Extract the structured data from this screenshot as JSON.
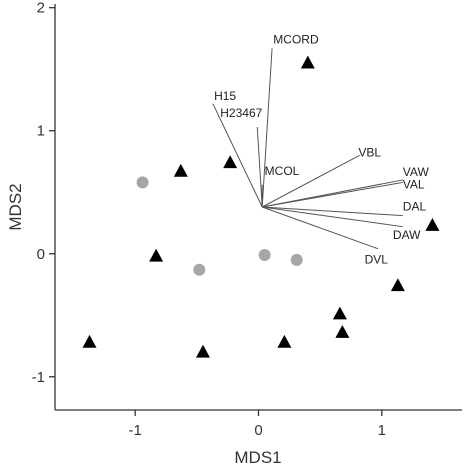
{
  "chart_data": {
    "type": "scatter",
    "title": "",
    "xlabel": "MDS1",
    "ylabel": "MDS2",
    "xlim": [
      -1.65,
      1.65
    ],
    "ylim": [
      -1.27,
      2.03
    ],
    "x_ticks": [
      -1,
      0,
      1
    ],
    "y_ticks": [
      -1,
      0,
      1,
      2
    ],
    "grid": false,
    "legend": "none",
    "series": [
      {
        "marker": "triangle",
        "color": "#000000",
        "points": [
          [
            -1.37,
            -0.72
          ],
          [
            -0.83,
            -0.02
          ],
          [
            -0.63,
            0.67
          ],
          [
            -0.45,
            -0.8
          ],
          [
            -0.23,
            0.74
          ],
          [
            0.21,
            -0.72
          ],
          [
            0.4,
            1.55
          ],
          [
            0.66,
            -0.49
          ],
          [
            0.68,
            -0.64
          ],
          [
            1.13,
            -0.26
          ],
          [
            1.41,
            0.23
          ]
        ]
      },
      {
        "marker": "circle",
        "color": "#a6a6a6",
        "points": [
          [
            -0.94,
            0.58
          ],
          [
            -0.48,
            -0.13
          ],
          [
            0.05,
            -0.01
          ],
          [
            0.31,
            -0.05
          ]
        ]
      }
    ],
    "vectors": {
      "origin": [
        0.03,
        0.38
      ],
      "color": "#555555",
      "items": [
        {
          "label": "MCORD",
          "end": [
            0.11,
            1.67
          ],
          "label_at": [
            0.12,
            1.71
          ]
        },
        {
          "label": "H15",
          "end": [
            -0.37,
            1.22
          ],
          "label_at": [
            -0.36,
            1.25
          ]
        },
        {
          "label": "H23467",
          "end": [
            -0.01,
            1.03
          ],
          "label_at": [
            -0.31,
            1.11
          ]
        },
        {
          "label": "MCOL",
          "end": [
            0.03,
            0.56
          ],
          "label_at": [
            0.05,
            0.64
          ]
        },
        {
          "label": "VBL",
          "end": [
            0.82,
            0.8
          ],
          "label_at": [
            0.81,
            0.79
          ]
        },
        {
          "label": "VAW",
          "end": [
            1.17,
            0.6
          ],
          "label_at": [
            1.17,
            0.63
          ]
        },
        {
          "label": "VAL",
          "end": [
            1.17,
            0.58
          ],
          "label_at": [
            1.17,
            0.53
          ]
        },
        {
          "label": "DAL",
          "end": [
            1.17,
            0.31
          ],
          "label_at": [
            1.17,
            0.35
          ]
        },
        {
          "label": "DAW",
          "end": [
            1.17,
            0.22
          ],
          "label_at": [
            1.09,
            0.12
          ]
        },
        {
          "label": "DVL",
          "end": [
            0.97,
            0.04
          ],
          "label_at": [
            0.86,
            -0.08
          ]
        }
      ]
    }
  }
}
